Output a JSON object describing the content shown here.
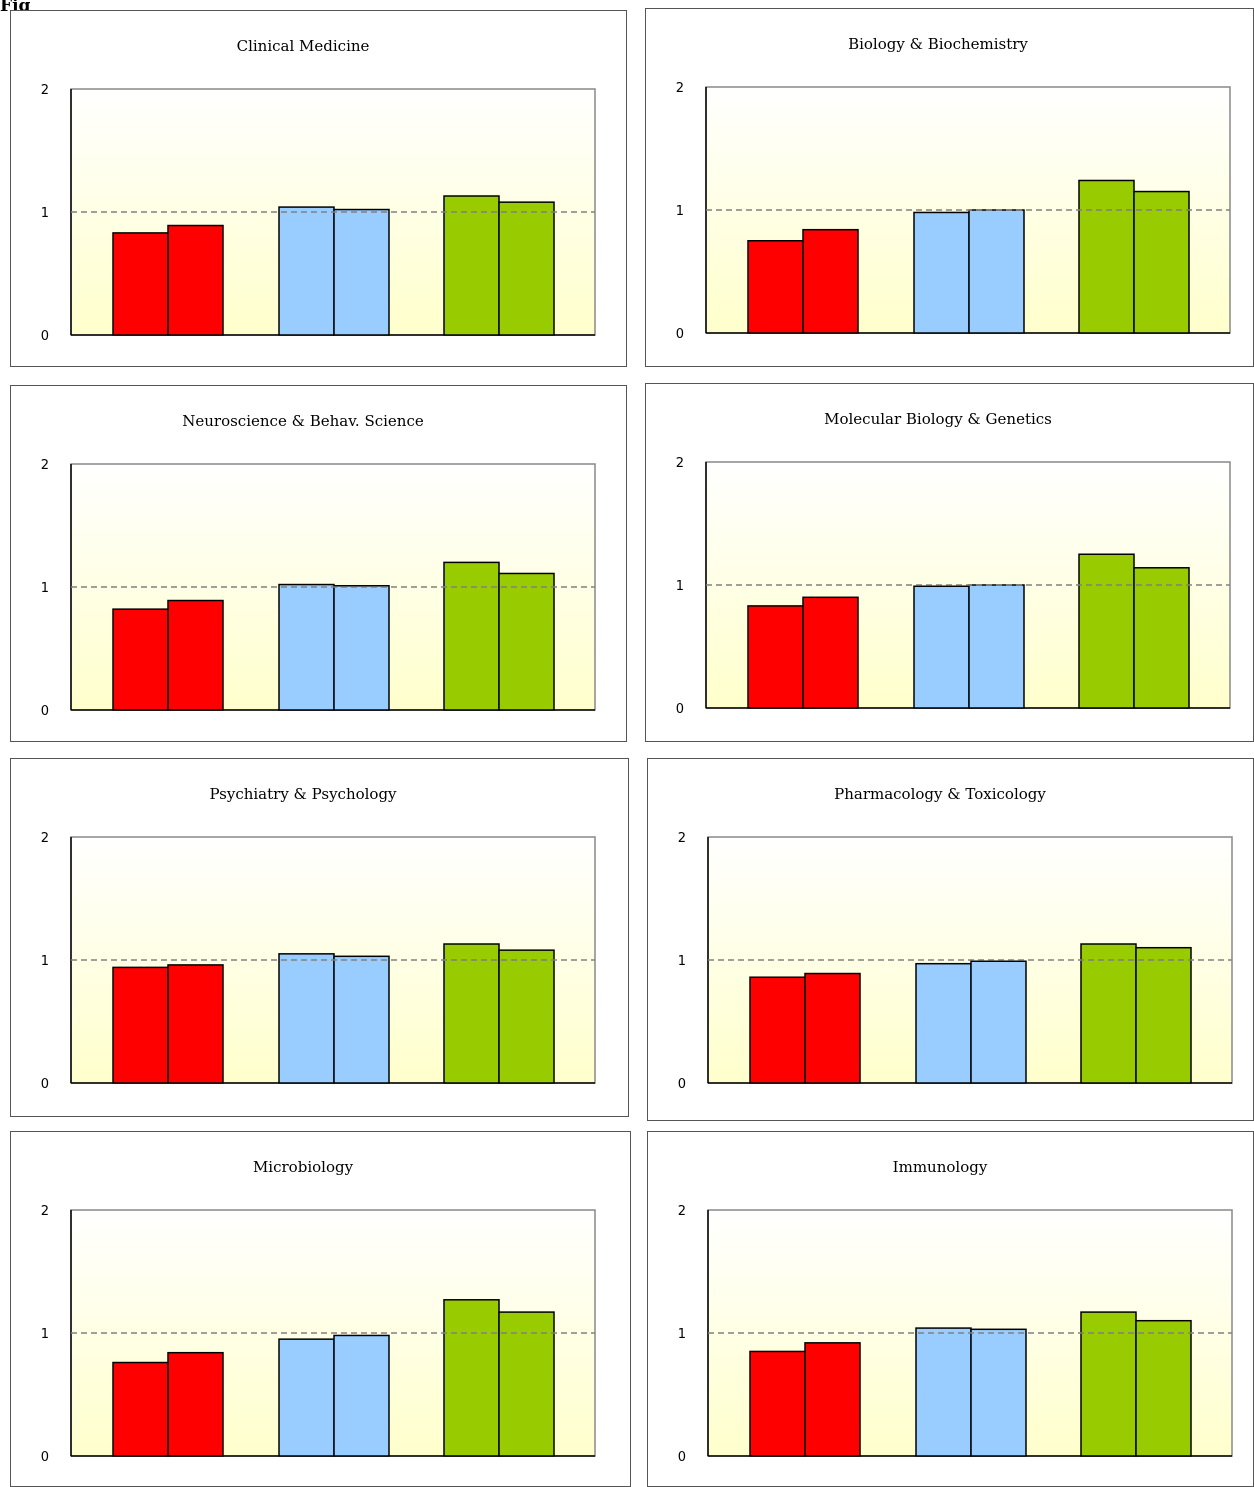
{
  "figure_label": "Fig",
  "colors": {
    "red": "#ff0000",
    "blue": "#99ccff",
    "green": "#99cc00",
    "reference_line": "#808080",
    "plot_top": "#ffffff",
    "plot_bottom": "#ffffcc"
  },
  "chart_data": [
    {
      "type": "bar",
      "title": "Clinical Medicine",
      "ylim": [
        0,
        2
      ],
      "yticks": [
        "0",
        "1",
        "2"
      ],
      "reference_line": 1,
      "groups": [
        {
          "color": "red",
          "values": [
            0.83,
            0.89
          ]
        },
        {
          "color": "blue",
          "values": [
            1.04,
            1.02
          ]
        },
        {
          "color": "green",
          "values": [
            1.13,
            1.08
          ]
        }
      ]
    },
    {
      "type": "bar",
      "title": "Biology & Biochemistry",
      "ylim": [
        0,
        2
      ],
      "yticks": [
        "0",
        "1",
        "2"
      ],
      "reference_line": 1,
      "groups": [
        {
          "color": "red",
          "values": [
            0.75,
            0.84
          ]
        },
        {
          "color": "blue",
          "values": [
            0.98,
            1.0
          ]
        },
        {
          "color": "green",
          "values": [
            1.24,
            1.15
          ]
        }
      ]
    },
    {
      "type": "bar",
      "title": "Neuroscience & Behav. Science",
      "ylim": [
        0,
        2
      ],
      "yticks": [
        "0",
        "1",
        "2"
      ],
      "reference_line": 1,
      "groups": [
        {
          "color": "red",
          "values": [
            0.82,
            0.89
          ]
        },
        {
          "color": "blue",
          "values": [
            1.02,
            1.01
          ]
        },
        {
          "color": "green",
          "values": [
            1.2,
            1.11
          ]
        }
      ]
    },
    {
      "type": "bar",
      "title": "Molecular Biology & Genetics",
      "ylim": [
        0,
        2
      ],
      "yticks": [
        "0",
        "1",
        "2"
      ],
      "reference_line": 1,
      "groups": [
        {
          "color": "red",
          "values": [
            0.83,
            0.9
          ]
        },
        {
          "color": "blue",
          "values": [
            0.99,
            1.0
          ]
        },
        {
          "color": "green",
          "values": [
            1.25,
            1.14
          ]
        }
      ]
    },
    {
      "type": "bar",
      "title": "Psychiatry & Psychology",
      "ylim": [
        0,
        2
      ],
      "yticks": [
        "0",
        "1",
        "2"
      ],
      "reference_line": 1,
      "groups": [
        {
          "color": "red",
          "values": [
            0.94,
            0.96
          ]
        },
        {
          "color": "blue",
          "values": [
            1.05,
            1.03
          ]
        },
        {
          "color": "green",
          "values": [
            1.13,
            1.08
          ]
        }
      ]
    },
    {
      "type": "bar",
      "title": "Pharmacology & Toxicology",
      "ylim": [
        0,
        2
      ],
      "yticks": [
        "0",
        "1",
        "2"
      ],
      "reference_line": 1,
      "groups": [
        {
          "color": "red",
          "values": [
            0.86,
            0.89
          ]
        },
        {
          "color": "blue",
          "values": [
            0.97,
            0.99
          ]
        },
        {
          "color": "green",
          "values": [
            1.13,
            1.1
          ]
        }
      ]
    },
    {
      "type": "bar",
      "title": "Microbiology",
      "ylim": [
        0,
        2
      ],
      "yticks": [
        "0",
        "1",
        "2"
      ],
      "reference_line": 1,
      "groups": [
        {
          "color": "red",
          "values": [
            0.76,
            0.84
          ]
        },
        {
          "color": "blue",
          "values": [
            0.95,
            0.98
          ]
        },
        {
          "color": "green",
          "values": [
            1.27,
            1.17
          ]
        }
      ]
    },
    {
      "type": "bar",
      "title": "Immunology",
      "ylim": [
        0,
        2
      ],
      "yticks": [
        "0",
        "1",
        "2"
      ],
      "reference_line": 1,
      "groups": [
        {
          "color": "red",
          "values": [
            0.85,
            0.92
          ]
        },
        {
          "color": "blue",
          "values": [
            1.04,
            1.03
          ]
        },
        {
          "color": "green",
          "values": [
            1.17,
            1.1
          ]
        }
      ]
    }
  ]
}
